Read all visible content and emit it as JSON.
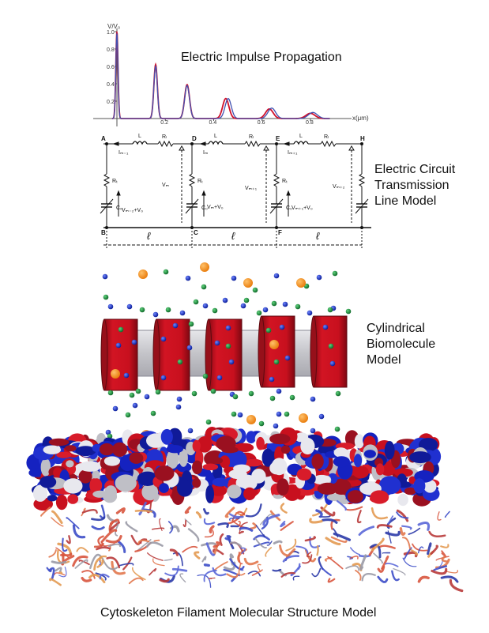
{
  "chart_data": {
    "type": "line",
    "title": "Electric Impulse Propagation",
    "ylabel": "V/V₀",
    "xlabel": "x(μm)",
    "xlim": [
      -0.02,
      0.9
    ],
    "ylim": [
      0,
      1.0
    ],
    "xticks": [
      "0.2",
      "0.4",
      "0.6",
      "0.8"
    ],
    "yticks": [
      "0.2",
      "0.4",
      "0.6",
      "0.8",
      "1.0"
    ],
    "series": [
      {
        "color": "#d0102a",
        "peaks": [
          {
            "x": 0.0,
            "y": 1.0
          },
          {
            "x": 0.16,
            "y": 0.62
          },
          {
            "x": 0.29,
            "y": 0.39
          },
          {
            "x": 0.45,
            "y": 0.23
          },
          {
            "x": 0.63,
            "y": 0.11
          },
          {
            "x": 0.8,
            "y": 0.06
          }
        ]
      },
      {
        "color": "#4050b0",
        "peaks": [
          {
            "x": 0.0,
            "y": 0.98
          },
          {
            "x": 0.16,
            "y": 0.6
          },
          {
            "x": 0.29,
            "y": 0.38
          },
          {
            "x": 0.46,
            "y": 0.23
          },
          {
            "x": 0.64,
            "y": 0.12
          },
          {
            "x": 0.81,
            "y": 0.07
          }
        ]
      }
    ]
  },
  "captions": {
    "impulse": "Electric Impulse Propagation",
    "circuit": [
      "Electric Circuit",
      "Transmission",
      "Line Model"
    ],
    "cylinder": [
      "Cylindrical",
      "Biomolecule",
      "Model"
    ],
    "filament": "Cytoskeleton Filament Molecular Structure Model"
  },
  "circuit": {
    "nodes_top": [
      "A",
      "D",
      "E",
      "H"
    ],
    "nodes_bottom": [
      "B",
      "C",
      "F"
    ],
    "inductor_label": "L",
    "resistor_label": "Rₗ",
    "current_labels": [
      "Iₘ₋₁",
      "Iₘ",
      "Iₘ₊₁"
    ],
    "shunt_resistor": "Rₜ",
    "capacitor": "C₀",
    "voltages_left": [
      "Vₘ₋₂+V₀",
      "Vₘ+V₀",
      "Vₘ₊₁+V₀"
    ],
    "voltages_right": [
      "Vₘ",
      "Vₘ₊₁",
      "Vₘ₊₂"
    ],
    "segment_length": "ℓ"
  },
  "colors": {
    "red_curve": "#d0102a",
    "blue_curve": "#4050b0",
    "cylinder_red": "#c8101e",
    "spacer_gray": "#c8c8cc",
    "ion_blue": "#1530c0",
    "ion_green": "#1e8a3c",
    "ion_orange": "#f5941e"
  }
}
